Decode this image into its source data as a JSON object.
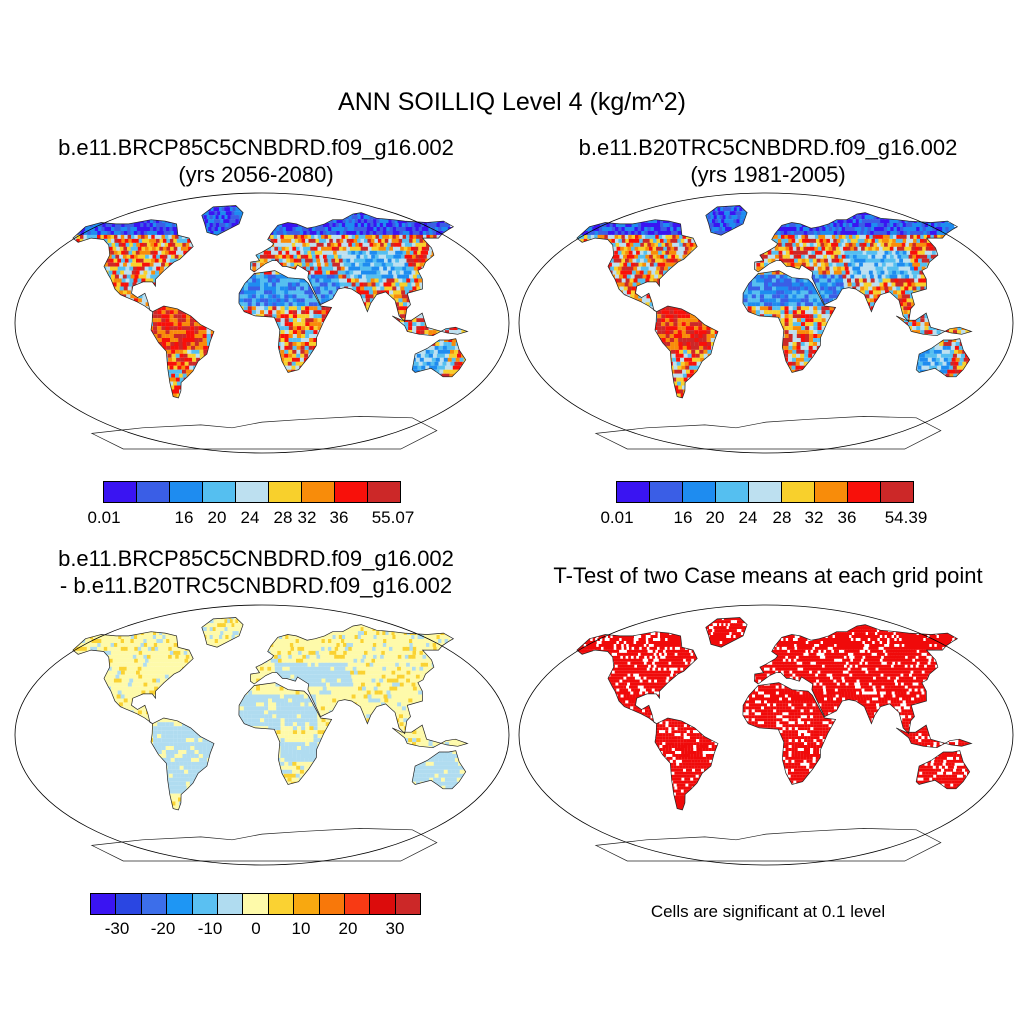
{
  "title": "ANN SOILLIQ Level 4 (kg/m^2)",
  "panels": {
    "case1": {
      "title_line1": "b.e11.BRCP85C5CNBDRD.f09_g16.002",
      "title_line2": "(yrs 2056-2080)",
      "colorbar_ticks": [
        "0.01",
        "16",
        "20",
        "24",
        "28",
        "32",
        "36",
        "55.07"
      ]
    },
    "case2": {
      "title_line1": "b.e11.B20TRC5CNBDRD.f09_g16.002",
      "title_line2": "(yrs 1981-2005)",
      "colorbar_ticks": [
        "0.01",
        "16",
        "20",
        "24",
        "28",
        "32",
        "36",
        "54.39"
      ]
    },
    "diff": {
      "title_line1": "b.e11.BRCP85C5CNBDRD.f09_g16.002",
      "title_line2": "- b.e11.B20TRC5CNBDRD.f09_g16.002",
      "colorbar_ticks": [
        "-30",
        "-20",
        "-10",
        "0",
        "10",
        "20",
        "30"
      ]
    },
    "ttest": {
      "title": "T-Test of two Case means at each grid point",
      "note": "Cells are significant at 0.1 level"
    }
  },
  "colors": {
    "abs_scale": [
      "#3a14f2",
      "#3a5ee6",
      "#1e8cf0",
      "#55bff0",
      "#bde0f0",
      "#f8d02c",
      "#f88c0a",
      "#f8100a",
      "#cc2828"
    ],
    "diff_scale": [
      "#3a14f2",
      "#2a46e2",
      "#3c6eea",
      "#1e96f4",
      "#5ac0f2",
      "#b0dcf0",
      "#fefaaa",
      "#fad232",
      "#f8a810",
      "#f8780a",
      "#f83a14",
      "#dc0c0c",
      "#cc2828"
    ],
    "signif": "#f00a0a"
  }
}
